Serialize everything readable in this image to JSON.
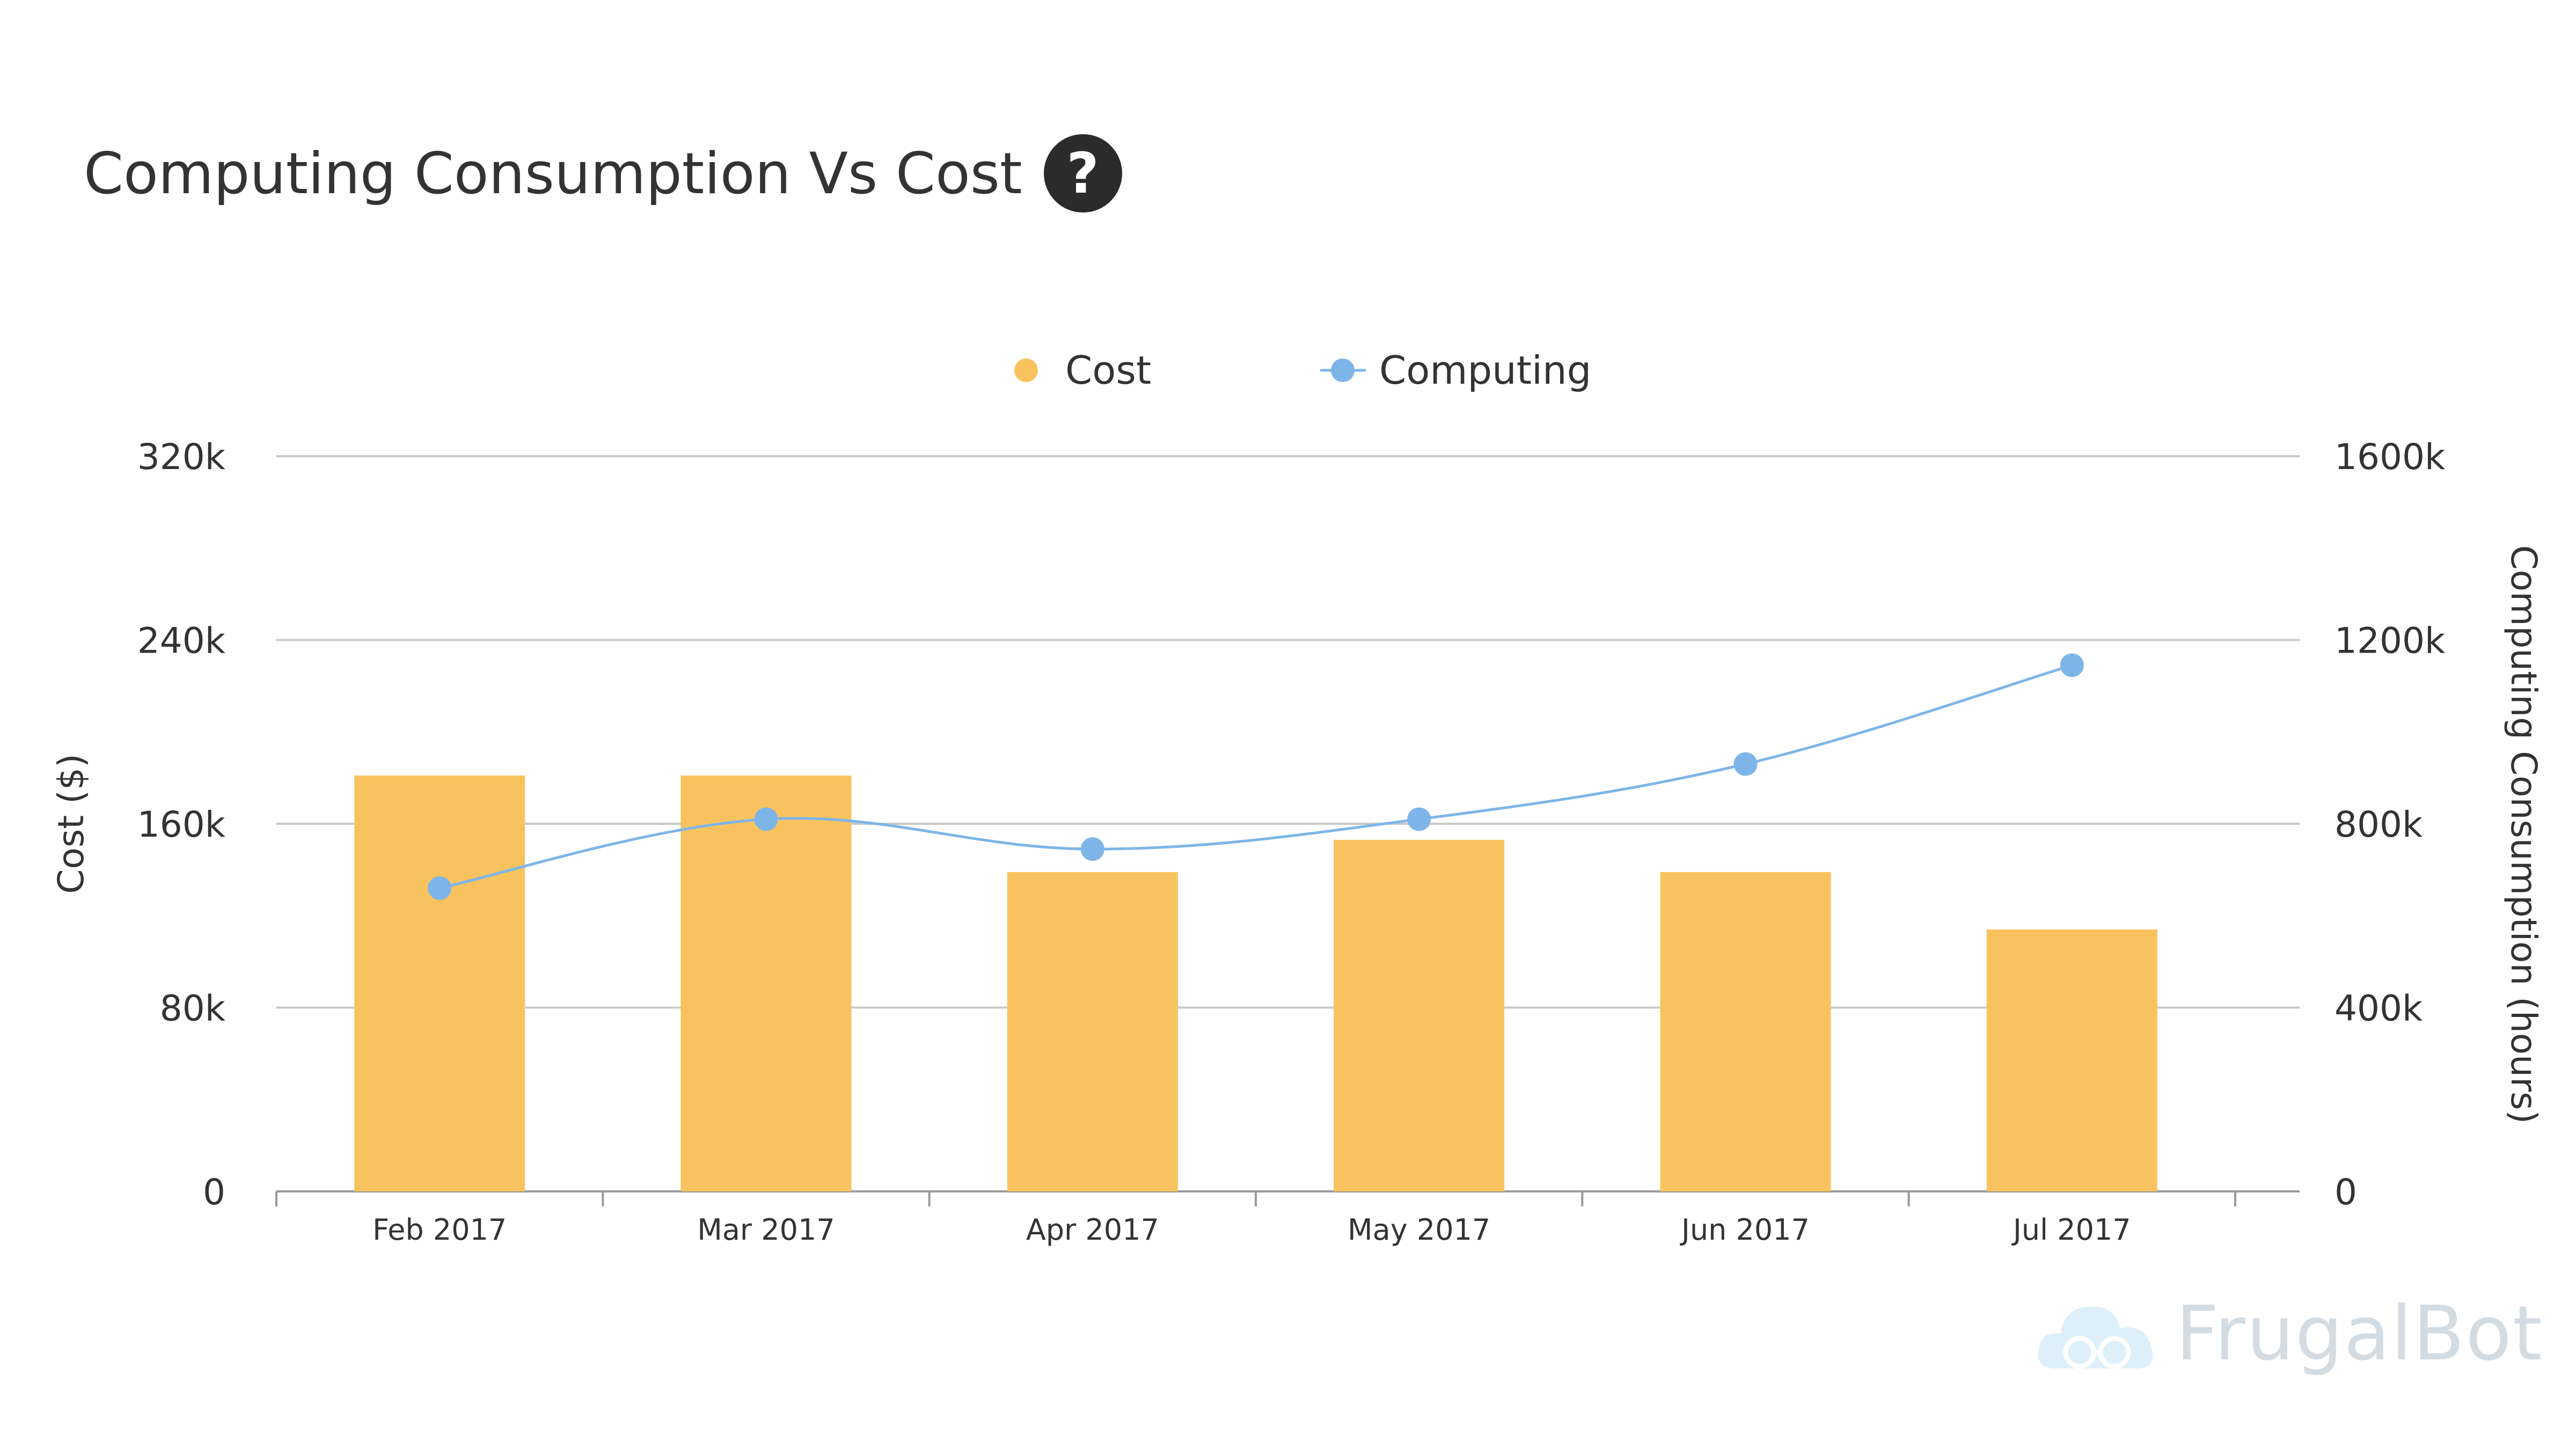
{
  "title": "Computing Consumption Vs Cost",
  "help_icon": "?",
  "watermark": "FrugalBot",
  "colors": {
    "cost": "#F8C35E",
    "computing": "#7EB5E8",
    "grid": "#C8C8C8",
    "text": "#333333"
  },
  "chart_data": {
    "type": "bar",
    "categories": [
      "Feb 2017",
      "Mar 2017",
      "Apr 2017",
      "May 2017",
      "Jun 2017",
      "Jul 2017"
    ],
    "series": [
      {
        "name": "Cost",
        "type": "bar",
        "axis": "left",
        "values": [
          181000,
          181000,
          139000,
          153000,
          139000,
          114000
        ]
      },
      {
        "name": "Computing",
        "type": "line",
        "axis": "right",
        "values": [
          660000,
          810000,
          745000,
          810000,
          930000,
          1145000
        ]
      }
    ],
    "ylabel": "Cost ($)",
    "y2label": "Computing Consumption (hours)",
    "ylim": [
      0,
      320000
    ],
    "y2lim": [
      0,
      1600000
    ],
    "yticks": [
      "0",
      "80k",
      "160k",
      "240k",
      "320k"
    ],
    "y2ticks": [
      "0",
      "400k",
      "800k",
      "1200k",
      "1600k"
    ],
    "legend": "top-center",
    "grid": true
  }
}
